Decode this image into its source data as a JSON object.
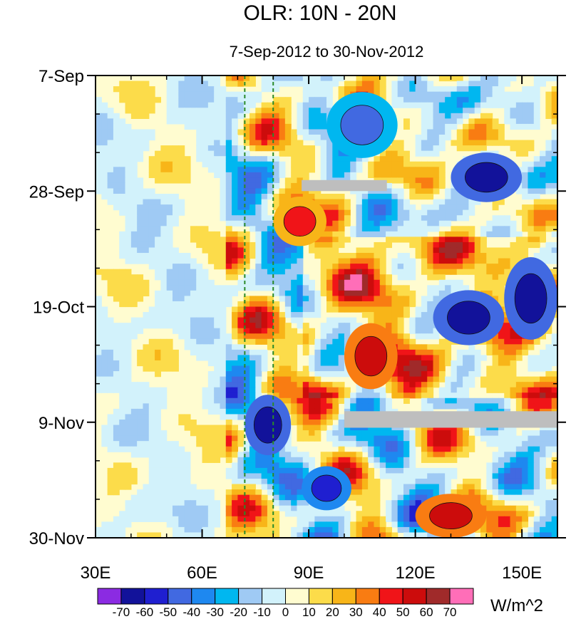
{
  "chart_data": {
    "type": "heatmap",
    "title": "OLR: 10N - 20N",
    "subtitle": "7-Sep-2012 to 30-Nov-2012",
    "xlabel": "",
    "ylabel": "",
    "x_range": [
      30,
      160
    ],
    "x_ticks": [
      {
        "value": 30,
        "label": "30E"
      },
      {
        "value": 60,
        "label": "60E"
      },
      {
        "value": 90,
        "label": "90E"
      },
      {
        "value": 120,
        "label": "120E"
      },
      {
        "value": 150,
        "label": "150E"
      }
    ],
    "y_range": [
      "7-Sep-2012",
      "30-Nov-2012"
    ],
    "y_direction": "time increases downward",
    "y_ticks": [
      {
        "value": "7-Sep-2012",
        "label": "7-Sep"
      },
      {
        "value": "28-Sep-2012",
        "label": "28-Sep"
      },
      {
        "value": "19-Oct-2012",
        "label": "19-Oct"
      },
      {
        "value": "9-Nov-2012",
        "label": "9-Nov"
      },
      {
        "value": "30-Nov-2012",
        "label": "30-Nov"
      }
    ],
    "reference_lines": [
      {
        "axis": "x",
        "value": 72,
        "style": "dashed",
        "color": "#2a8a2a"
      },
      {
        "axis": "x",
        "value": 80,
        "style": "dashed",
        "color": "#2a8a2a"
      }
    ],
    "colorbar": {
      "unit": "W/m^2",
      "levels": [
        -70,
        -60,
        -50,
        -40,
        -30,
        -20,
        -10,
        0,
        10,
        20,
        30,
        40,
        50,
        60,
        70
      ],
      "colors": [
        "#8b2be2",
        "#12129a",
        "#1f1fd0",
        "#4169e1",
        "#1e88f0",
        "#00b7f0",
        "#9fcaf4",
        "#d2f2fb",
        "#fffcd0",
        "#fcdc4a",
        "#f8b518",
        "#f97c12",
        "#f01418",
        "#cc0c0c",
        "#a02a2a",
        "#ff6eb8"
      ]
    },
    "missing_color": "#bebebe",
    "grid": false,
    "legend_placement": "bottom",
    "features": [
      {
        "kind": "negative",
        "lon": [
          72,
          85
        ],
        "date": [
          "4-Nov-2012",
          "15-Nov-2012"
        ],
        "value": -70
      },
      {
        "kind": "negative",
        "lon": [
          88,
          102
        ],
        "date": [
          "17-Nov-2012",
          "25-Nov-2012"
        ],
        "value": -60
      },
      {
        "kind": "negative",
        "lon": [
          145,
          160
        ],
        "date": [
          "10-Oct-2012",
          "25-Oct-2012"
        ],
        "value": -70
      },
      {
        "kind": "negative",
        "lon": [
          125,
          145
        ],
        "date": [
          "16-Oct-2012",
          "26-Oct-2012"
        ],
        "value": -70
      },
      {
        "kind": "negative",
        "lon": [
          130,
          150
        ],
        "date": [
          "21-Sep-2012",
          "30-Sep-2012"
        ],
        "value": -70
      },
      {
        "kind": "negative",
        "lon": [
          95,
          115
        ],
        "date": [
          "10-Sep-2012",
          "22-Sep-2012"
        ],
        "value": -50
      },
      {
        "kind": "positive",
        "lon": [
          100,
          115
        ],
        "date": [
          "22-Oct-2012",
          "3-Nov-2012"
        ],
        "value": 50
      },
      {
        "kind": "positive",
        "lon": [
          120,
          140
        ],
        "date": [
          "22-Nov-2012",
          "30-Nov-2012"
        ],
        "value": 50
      },
      {
        "kind": "positive",
        "lon": [
          80,
          95
        ],
        "date": [
          "29-Sep-2012",
          "8-Oct-2012"
        ],
        "value": 40
      },
      {
        "kind": "missing",
        "lon": [
          88,
          112
        ],
        "date": [
          "26-Sep-2012",
          "28-Sep-2012"
        ]
      },
      {
        "kind": "missing",
        "lon": [
          100,
          160
        ],
        "date": [
          "7-Nov-2012",
          "10-Nov-2012"
        ]
      }
    ]
  }
}
